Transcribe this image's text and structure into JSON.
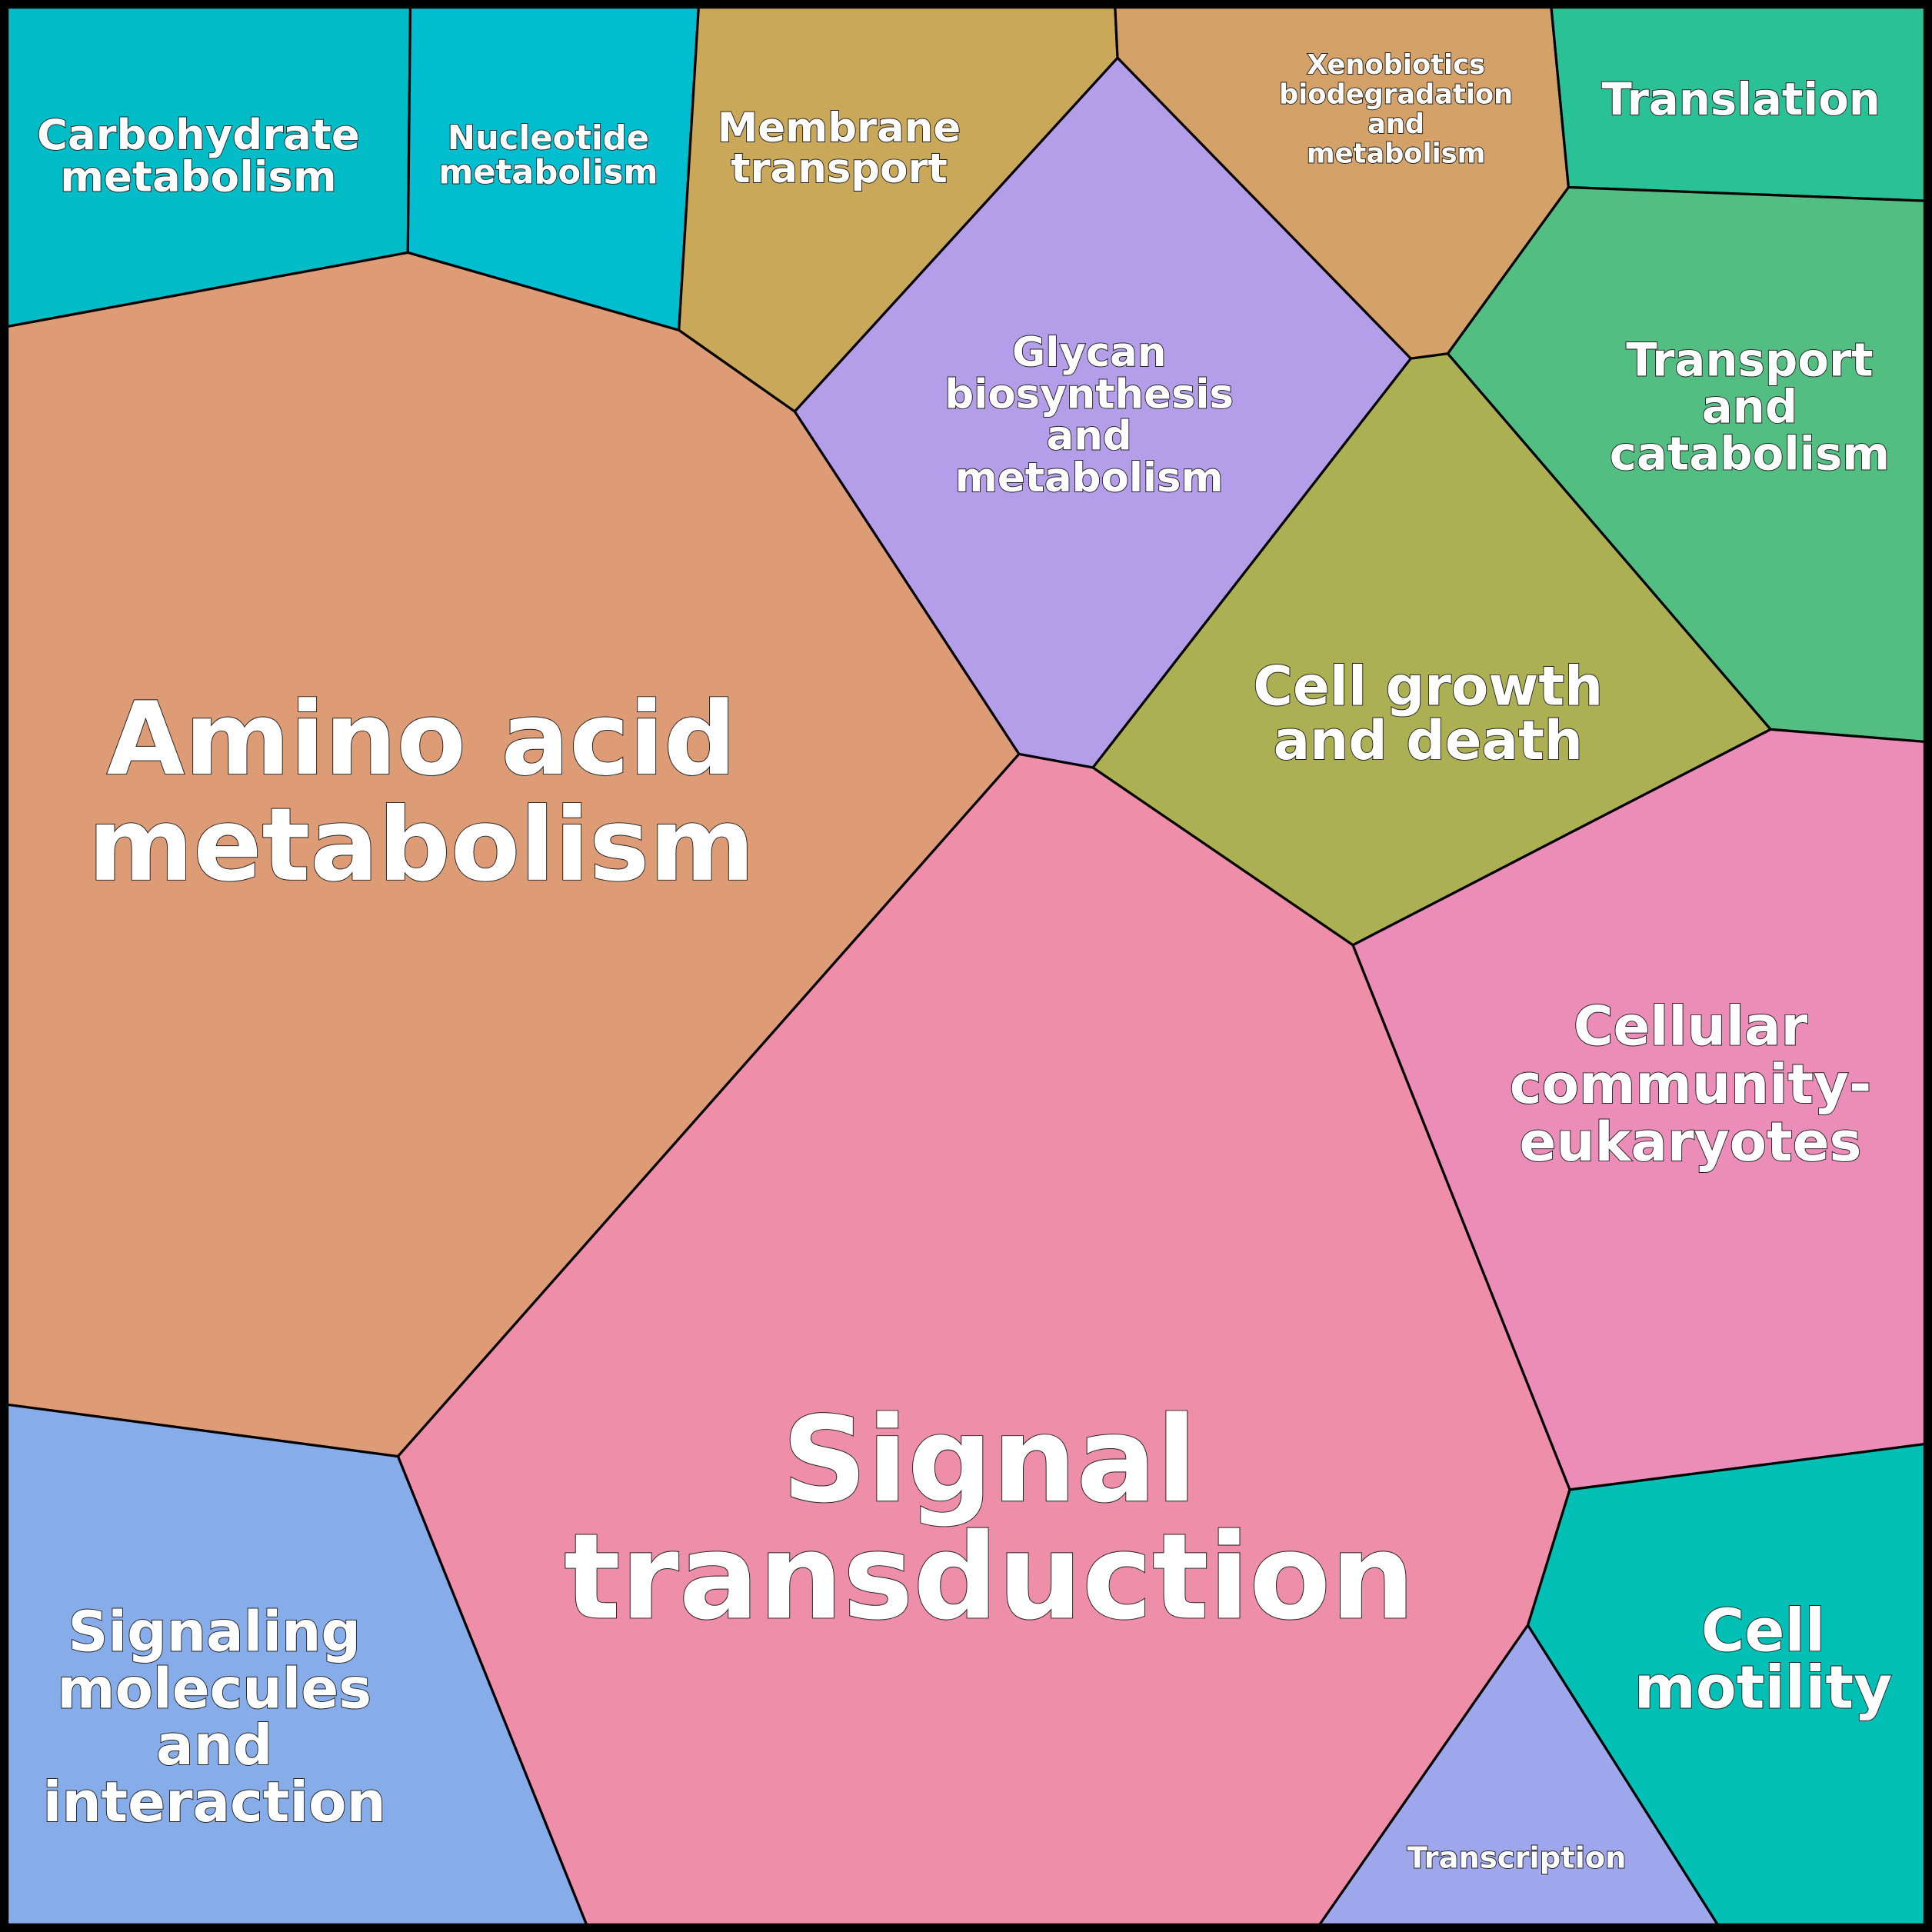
{
  "title": "Voronoi treemap of KEGG pathway categories",
  "cells": [
    {
      "id": "carbohydrate",
      "lines": [
        "Carbohydrate",
        "metabolism"
      ],
      "color": "#00BCC6"
    },
    {
      "id": "nucleotide",
      "lines": [
        "Nucleotide",
        "metabolism"
      ],
      "color": "#00BED0"
    },
    {
      "id": "membrane",
      "lines": [
        "Membrane",
        "transport"
      ],
      "color": "#C9A85A"
    },
    {
      "id": "xenobiotics",
      "lines": [
        "Xenobiotics",
        "biodegradation",
        "and",
        "metabolism"
      ],
      "color": "#D4A268"
    },
    {
      "id": "translation",
      "lines": [
        "Translation"
      ],
      "color": "#2BC196"
    },
    {
      "id": "transport-catabolism",
      "lines": [
        "Transport",
        "and",
        "catabolism"
      ],
      "color": "#52BE82"
    },
    {
      "id": "glycan",
      "lines": [
        "Glycan",
        "biosynthesis",
        "and",
        "metabolism"
      ],
      "color": "#B49EEA"
    },
    {
      "id": "cell-growth",
      "lines": [
        "Cell growth",
        "and death"
      ],
      "color": "#ACB052"
    },
    {
      "id": "amino-acid",
      "lines": [
        "Amino acid",
        "metabolism"
      ],
      "color": "#DE9C76"
    },
    {
      "id": "signal-transduction",
      "lines": [
        "Signal",
        "transduction"
      ],
      "color": "#EE8EA8"
    },
    {
      "id": "cellular-community",
      "lines": [
        "Cellular",
        "community-",
        "eukaryotes"
      ],
      "color": "#EC8CB8"
    },
    {
      "id": "cell-motility",
      "lines": [
        "Cell",
        "motility"
      ],
      "color": "#00C0B6"
    },
    {
      "id": "transcription",
      "lines": [
        "Transcription"
      ],
      "color": "#9EA6EC"
    },
    {
      "id": "signaling-molecules",
      "lines": [
        "Signaling",
        "molecules",
        "and",
        "interaction"
      ],
      "color": "#86ADEA"
    }
  ]
}
